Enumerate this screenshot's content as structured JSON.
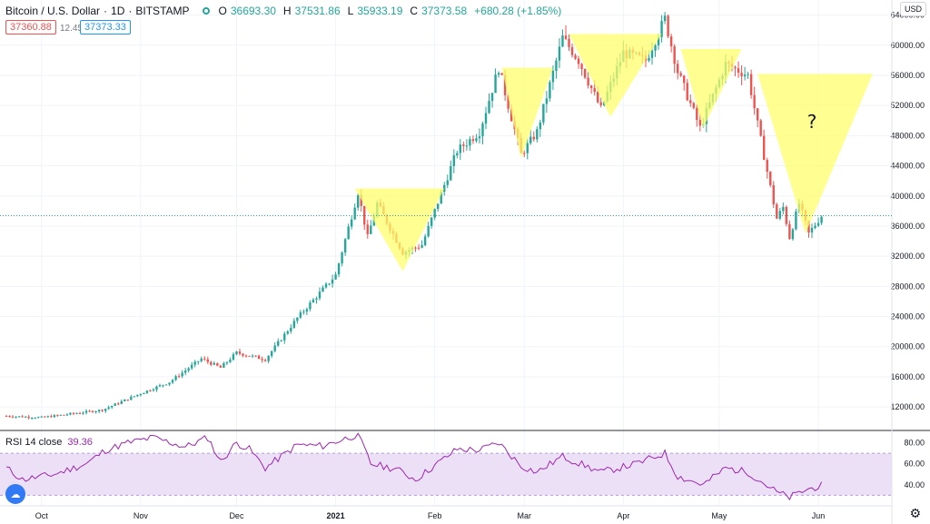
{
  "header": {
    "symbol": "Bitcoin / U.S. Dollar",
    "interval": "1D",
    "exchange": "BITSTAMP",
    "open_label": "O",
    "open": "36693.30",
    "high_label": "H",
    "high": "37531.86",
    "low_label": "L",
    "low": "35933.19",
    "close_label": "C",
    "close": "37373.58",
    "change": "+680.28 (+1.85%)"
  },
  "price_boxes": {
    "bid": "37360.88",
    "spread": "12.45",
    "ask": "37373.33"
  },
  "axis": {
    "currency": "USD"
  },
  "rsi": {
    "label": "RSI 14 close",
    "value": "39.36"
  },
  "annotation": {
    "question": "?"
  },
  "colors": {
    "up": "#26a69a",
    "down": "#ef5350",
    "triangle": "#ffff66",
    "rsi_line": "#9c27b0",
    "rsi_band": "#ece0f7",
    "grid": "#f0f3fa"
  },
  "chart_data": [
    {
      "type": "candlestick",
      "title": "Bitcoin / U.S. Dollar",
      "ylim": [
        9000,
        66000
      ],
      "y_ticks": [
        12000,
        16000,
        20000,
        24000,
        28000,
        32000,
        36000,
        40000,
        44000,
        48000,
        52000,
        56000,
        60000,
        64000
      ],
      "x_ticks": [
        "Oct",
        "Nov",
        "Dec",
        "2021",
        "Feb",
        "Mar",
        "Apr",
        "May",
        "Jun"
      ],
      "anchors": [
        [
          "2020-09-20",
          10800
        ],
        [
          "2020-10-01",
          10600
        ],
        [
          "2020-10-20",
          11600
        ],
        [
          "2020-11-01",
          13800
        ],
        [
          "2020-11-10",
          15300
        ],
        [
          "2020-11-20",
          18400
        ],
        [
          "2020-11-26",
          17200
        ],
        [
          "2020-12-01",
          19200
        ],
        [
          "2020-12-10",
          18300
        ],
        [
          "2020-12-20",
          23800
        ],
        [
          "2021-01-01",
          29500
        ],
        [
          "2021-01-08",
          40500
        ],
        [
          "2021-01-11",
          34500
        ],
        [
          "2021-01-14",
          39000
        ],
        [
          "2021-01-22",
          32500
        ],
        [
          "2021-01-28",
          33500
        ],
        [
          "2021-02-08",
          46000
        ],
        [
          "2021-02-15",
          48500
        ],
        [
          "2021-02-21",
          57000
        ],
        [
          "2021-02-28",
          45500
        ],
        [
          "2021-03-05",
          48500
        ],
        [
          "2021-03-13",
          61000
        ],
        [
          "2021-03-18",
          58000
        ],
        [
          "2021-03-25",
          51500
        ],
        [
          "2021-04-01",
          59000
        ],
        [
          "2021-04-08",
          58000
        ],
        [
          "2021-04-14",
          63500
        ],
        [
          "2021-04-18",
          56500
        ],
        [
          "2021-04-25",
          49000
        ],
        [
          "2021-05-03",
          57500
        ],
        [
          "2021-05-10",
          56000
        ],
        [
          "2021-05-13",
          49500
        ],
        [
          "2021-05-19",
          37000
        ],
        [
          "2021-05-21",
          38500
        ],
        [
          "2021-05-23",
          34500
        ],
        [
          "2021-05-26",
          39000
        ],
        [
          "2021-05-29",
          35000
        ],
        [
          "2021-06-02",
          37373
        ]
      ],
      "triangles": [
        {
          "top_left": [
            "2021-01-07",
            41000
          ],
          "top_right": [
            "2021-02-04",
            41000
          ],
          "apex": [
            "2021-01-22",
            30000
          ]
        },
        {
          "top_left": [
            "2021-02-22",
            57000
          ],
          "top_right": [
            "2021-03-10",
            57000
          ],
          "apex": [
            "2021-02-28",
            45000
          ]
        },
        {
          "top_left": [
            "2021-03-15",
            61500
          ],
          "top_right": [
            "2021-04-13",
            61500
          ],
          "apex": [
            "2021-03-28",
            50500
          ]
        },
        {
          "top_left": [
            "2021-04-19",
            59500
          ],
          "top_right": [
            "2021-05-08",
            59500
          ],
          "apex": [
            "2021-04-26",
            49000
          ]
        },
        {
          "top_left": [
            "2021-05-13",
            56200
          ],
          "top_right": [
            "2021-06-18",
            56200
          ],
          "apex": [
            "2021-05-28",
            35000
          ]
        }
      ],
      "question_mark_at": [
        "2021-05-30",
        49000
      ]
    },
    {
      "type": "line",
      "title": "RSI 14 close",
      "ylim": [
        20,
        90
      ],
      "y_ticks": [
        40,
        60,
        80
      ],
      "band": [
        30,
        70
      ],
      "anchors": [
        [
          "2020-09-20",
          56
        ],
        [
          "2020-09-25",
          45
        ],
        [
          "2020-10-05",
          50
        ],
        [
          "2020-10-15",
          60
        ],
        [
          "2020-10-21",
          73
        ],
        [
          "2020-10-28",
          80
        ],
        [
          "2020-11-05",
          85
        ],
        [
          "2020-11-15",
          76
        ],
        [
          "2020-11-22",
          85
        ],
        [
          "2020-11-26",
          62
        ],
        [
          "2020-12-01",
          80
        ],
        [
          "2020-12-05",
          74
        ],
        [
          "2020-12-10",
          56
        ],
        [
          "2020-12-20",
          78
        ],
        [
          "2020-12-28",
          77
        ],
        [
          "2021-01-08",
          88
        ],
        [
          "2021-01-12",
          60
        ],
        [
          "2021-01-20",
          55
        ],
        [
          "2021-01-26",
          45
        ],
        [
          "2021-02-08",
          74
        ],
        [
          "2021-02-15",
          73
        ],
        [
          "2021-02-21",
          80
        ],
        [
          "2021-02-28",
          58
        ],
        [
          "2021-03-05",
          52
        ],
        [
          "2021-03-13",
          67
        ],
        [
          "2021-03-25",
          52
        ],
        [
          "2021-04-05",
          60
        ],
        [
          "2021-04-14",
          70
        ],
        [
          "2021-04-18",
          48
        ],
        [
          "2021-04-26",
          40
        ],
        [
          "2021-05-03",
          56
        ],
        [
          "2021-05-10",
          52
        ],
        [
          "2021-05-19",
          33
        ],
        [
          "2021-05-23",
          28
        ],
        [
          "2021-05-28",
          35
        ],
        [
          "2021-06-02",
          39.36
        ]
      ]
    }
  ]
}
